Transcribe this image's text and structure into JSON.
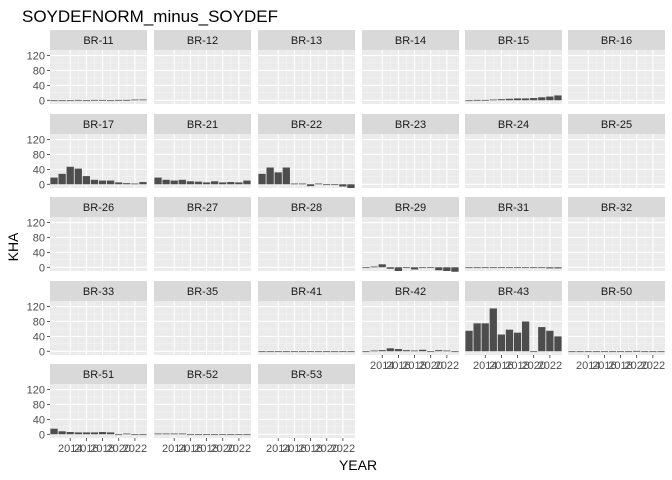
{
  "chart_data": {
    "type": "bar",
    "title": "SOYDEFNORM_minus_SOYDEF",
    "xlabel": "YEAR",
    "ylabel": "KHA",
    "x": [
      2012,
      2013,
      2014,
      2015,
      2016,
      2017,
      2018,
      2019,
      2020,
      2021,
      2022,
      2023
    ],
    "x_ticks": [
      "2014",
      "2016",
      "2018",
      "2020",
      "2022"
    ],
    "y_ticks": [
      "0",
      "40",
      "80",
      "120"
    ],
    "ylim": [
      -10,
      135
    ],
    "grid": true,
    "colors": {
      "bar": "#4d4d4d",
      "panel": "#ebebeb",
      "strip": "#d9d9d9",
      "grid_major": "#ffffff"
    },
    "panels": [
      {
        "name": "BR-11",
        "values": [
          0,
          0,
          0,
          1,
          0,
          1,
          1,
          0,
          1,
          1,
          2,
          2
        ]
      },
      {
        "name": "BR-12",
        "values": []
      },
      {
        "name": "BR-13",
        "values": []
      },
      {
        "name": "BR-14",
        "values": []
      },
      {
        "name": "BR-15",
        "values": [
          0,
          1,
          1,
          2,
          3,
          4,
          5,
          5,
          6,
          8,
          10,
          13
        ]
      },
      {
        "name": "BR-16",
        "values": []
      },
      {
        "name": "BR-17",
        "values": [
          18,
          28,
          47,
          42,
          22,
          12,
          10,
          10,
          5,
          3,
          2,
          6
        ]
      },
      {
        "name": "BR-21",
        "values": [
          18,
          12,
          10,
          12,
          8,
          7,
          5,
          8,
          5,
          6,
          5,
          10
        ]
      },
      {
        "name": "BR-22",
        "values": [
          28,
          45,
          32,
          45,
          2,
          2,
          -5,
          2,
          0,
          0,
          -6,
          -10
        ]
      },
      {
        "name": "BR-23",
        "values": []
      },
      {
        "name": "BR-24",
        "values": []
      },
      {
        "name": "BR-25",
        "values": []
      },
      {
        "name": "BR-26",
        "values": []
      },
      {
        "name": "BR-27",
        "values": []
      },
      {
        "name": "BR-28",
        "values": []
      },
      {
        "name": "BR-29",
        "values": [
          0,
          2,
          8,
          -4,
          -10,
          0,
          -6,
          -1,
          0,
          -8,
          -10,
          -12
        ]
      },
      {
        "name": "BR-31",
        "values": [
          0,
          0,
          -2,
          0,
          0,
          0,
          0,
          0,
          0,
          0,
          -3,
          -3
        ]
      },
      {
        "name": "BR-32",
        "values": []
      },
      {
        "name": "BR-33",
        "values": []
      },
      {
        "name": "BR-35",
        "values": []
      },
      {
        "name": "BR-41",
        "values": [
          0,
          0,
          0,
          0,
          0,
          0,
          0,
          0,
          0,
          0,
          0,
          0
        ]
      },
      {
        "name": "BR-42",
        "values": [
          0,
          2,
          3,
          8,
          6,
          3,
          2,
          4,
          0,
          3,
          2,
          0
        ]
      },
      {
        "name": "BR-43",
        "values": [
          55,
          75,
          75,
          115,
          45,
          58,
          50,
          80,
          0,
          65,
          55,
          40
        ]
      },
      {
        "name": "BR-50",
        "values": [
          0,
          0,
          0,
          0,
          0,
          0,
          0,
          0,
          1,
          0,
          0,
          0
        ]
      },
      {
        "name": "BR-51",
        "values": [
          15,
          8,
          6,
          5,
          5,
          5,
          6,
          5,
          0,
          2,
          0,
          0
        ]
      },
      {
        "name": "BR-52",
        "values": [
          2,
          2,
          2,
          2,
          0,
          0,
          0,
          0,
          0,
          -2,
          -2,
          0
        ]
      },
      {
        "name": "BR-53",
        "values": []
      }
    ]
  }
}
